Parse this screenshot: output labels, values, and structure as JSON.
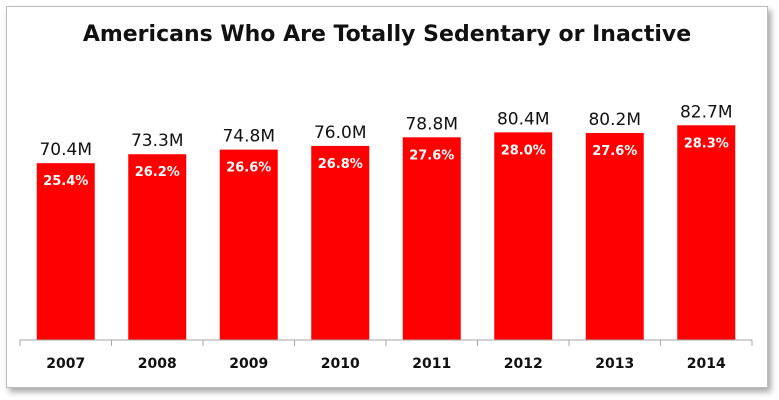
{
  "chart_data": {
    "type": "bar",
    "title": "Americans Who Are Totally Sedentary or Inactive",
    "categories": [
      "2007",
      "2008",
      "2009",
      "2010",
      "2011",
      "2012",
      "2013",
      "2014"
    ],
    "values": [
      70.4,
      73.3,
      74.8,
      76.0,
      78.8,
      80.4,
      80.2,
      82.7
    ],
    "value_labels": [
      "70.4M",
      "73.3M",
      "74.8M",
      "76.0M",
      "78.8M",
      "80.4M",
      "80.2M",
      "82.7M"
    ],
    "percent_labels": [
      "25.4%",
      "26.2%",
      "26.6%",
      "26.8%",
      "27.6%",
      "28.0%",
      "27.6%",
      "28.3%"
    ],
    "xlabel": "",
    "ylabel": "",
    "grid": false,
    "legend": "none",
    "bar_color": "#ff0000",
    "axis_color": "#a6a6a6"
  }
}
